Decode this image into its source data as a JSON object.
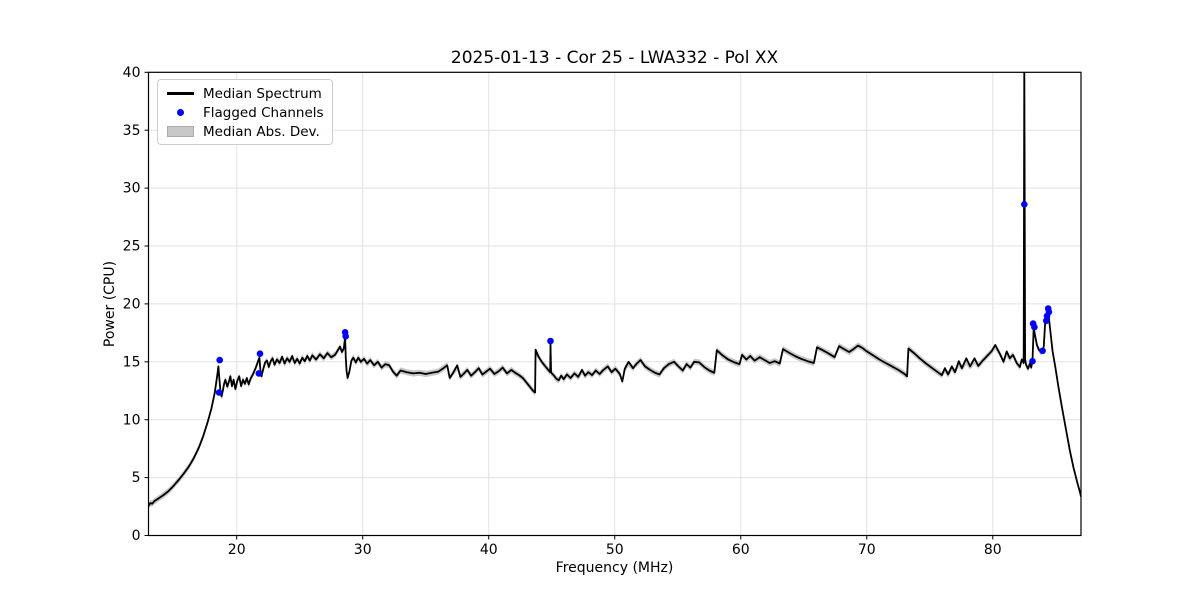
{
  "figure": {
    "background": "#ffffff"
  },
  "colors": {
    "line": "#000000",
    "flagged": "#0000ff",
    "band": "#c8c8c8",
    "grid": "#e2e2e2",
    "spine": "#000000",
    "tick": "#000000",
    "text": "#000000"
  },
  "legend": {
    "items": [
      {
        "label": "Median Spectrum",
        "swatch": "line"
      },
      {
        "label": "Flagged Channels",
        "swatch": "dot"
      },
      {
        "label": "Median Abs. Dev.",
        "swatch": "patch"
      }
    ]
  },
  "chart_data": {
    "type": "line",
    "title": "2025-01-13 - Cor 25 - LWA332 - Pol XX",
    "xlabel": "Frequency (MHz)",
    "ylabel": "Power (CPU)",
    "xlim": [
      13,
      87
    ],
    "ylim": [
      0,
      40
    ],
    "xticks": [
      20,
      30,
      40,
      50,
      60,
      70,
      80
    ],
    "yticks": [
      0,
      5,
      10,
      15,
      20,
      25,
      30,
      35,
      40
    ],
    "grid": true,
    "legend_position": "upper left",
    "series": [
      {
        "name": "Median Spectrum",
        "type": "line",
        "color": "#000000",
        "points": [
          [
            13.0,
            2.55
          ],
          [
            13.15,
            2.8
          ],
          [
            13.3,
            2.75
          ],
          [
            13.45,
            2.95
          ],
          [
            13.8,
            3.2
          ],
          [
            14.2,
            3.5
          ],
          [
            14.6,
            3.85
          ],
          [
            15.0,
            4.3
          ],
          [
            15.4,
            4.8
          ],
          [
            15.8,
            5.35
          ],
          [
            16.2,
            5.95
          ],
          [
            16.6,
            6.7
          ],
          [
            17.0,
            7.6
          ],
          [
            17.35,
            8.6
          ],
          [
            17.7,
            9.8
          ],
          [
            18.0,
            11.0
          ],
          [
            18.25,
            12.3
          ],
          [
            18.45,
            13.8
          ],
          [
            18.55,
            14.6
          ],
          [
            18.62,
            13.6
          ],
          [
            18.7,
            12.6
          ],
          [
            18.8,
            12.0
          ],
          [
            18.9,
            12.5
          ],
          [
            19.0,
            13.1
          ],
          [
            19.1,
            13.45
          ],
          [
            19.25,
            12.85
          ],
          [
            19.4,
            13.35
          ],
          [
            19.5,
            13.75
          ],
          [
            19.62,
            12.9
          ],
          [
            19.75,
            13.45
          ],
          [
            19.9,
            12.65
          ],
          [
            20.05,
            13.35
          ],
          [
            20.2,
            13.75
          ],
          [
            20.35,
            12.9
          ],
          [
            20.5,
            13.45
          ],
          [
            20.65,
            13.1
          ],
          [
            20.8,
            13.6
          ],
          [
            20.95,
            13.05
          ],
          [
            21.1,
            13.55
          ],
          [
            21.3,
            13.95
          ],
          [
            21.5,
            14.45
          ],
          [
            21.7,
            15.05
          ],
          [
            21.8,
            15.35
          ],
          [
            21.88,
            14.3
          ],
          [
            21.97,
            13.75
          ],
          [
            22.1,
            14.35
          ],
          [
            22.25,
            14.95
          ],
          [
            22.4,
            15.1
          ],
          [
            22.55,
            14.55
          ],
          [
            22.7,
            15.05
          ],
          [
            22.85,
            15.3
          ],
          [
            23.0,
            14.75
          ],
          [
            23.2,
            15.2
          ],
          [
            23.4,
            14.9
          ],
          [
            23.6,
            15.45
          ],
          [
            23.8,
            14.85
          ],
          [
            24.0,
            15.3
          ],
          [
            24.2,
            15.0
          ],
          [
            24.4,
            15.5
          ],
          [
            24.6,
            14.9
          ],
          [
            24.8,
            15.25
          ],
          [
            25.0,
            14.85
          ],
          [
            25.2,
            15.35
          ],
          [
            25.4,
            15.05
          ],
          [
            25.6,
            15.5
          ],
          [
            25.8,
            15.1
          ],
          [
            26.0,
            15.55
          ],
          [
            26.3,
            15.2
          ],
          [
            26.6,
            15.65
          ],
          [
            26.9,
            15.3
          ],
          [
            27.2,
            15.75
          ],
          [
            27.5,
            15.4
          ],
          [
            27.8,
            15.6
          ],
          [
            28.0,
            15.95
          ],
          [
            28.2,
            16.3
          ],
          [
            28.35,
            15.85
          ],
          [
            28.5,
            16.15
          ],
          [
            28.6,
            17.1
          ],
          [
            28.66,
            15.3
          ],
          [
            28.72,
            14.2
          ],
          [
            28.8,
            13.6
          ],
          [
            28.95,
            14.2
          ],
          [
            29.1,
            15.1
          ],
          [
            29.25,
            15.35
          ],
          [
            29.45,
            14.95
          ],
          [
            29.65,
            15.35
          ],
          [
            29.85,
            15.0
          ],
          [
            30.1,
            15.25
          ],
          [
            30.35,
            14.85
          ],
          [
            30.6,
            15.15
          ],
          [
            30.9,
            14.7
          ],
          [
            31.2,
            15.0
          ],
          [
            31.5,
            14.5
          ],
          [
            31.8,
            14.8
          ],
          [
            32.1,
            14.7
          ],
          [
            32.4,
            14.15
          ],
          [
            32.7,
            13.8
          ],
          [
            33.0,
            14.25
          ],
          [
            33.5,
            14.1
          ],
          [
            34.0,
            14.0
          ],
          [
            34.5,
            14.05
          ],
          [
            35.0,
            13.95
          ],
          [
            35.5,
            14.05
          ],
          [
            36.0,
            14.15
          ],
          [
            36.4,
            14.45
          ],
          [
            36.7,
            14.7
          ],
          [
            36.9,
            13.6
          ],
          [
            37.2,
            14.1
          ],
          [
            37.5,
            14.7
          ],
          [
            37.75,
            13.7
          ],
          [
            38.0,
            13.95
          ],
          [
            38.3,
            14.3
          ],
          [
            38.6,
            13.8
          ],
          [
            38.9,
            14.1
          ],
          [
            39.2,
            14.45
          ],
          [
            39.5,
            13.9
          ],
          [
            39.8,
            14.15
          ],
          [
            40.1,
            14.4
          ],
          [
            40.45,
            13.95
          ],
          [
            40.8,
            14.2
          ],
          [
            41.1,
            14.5
          ],
          [
            41.45,
            14.0
          ],
          [
            41.8,
            14.3
          ],
          [
            42.1,
            14.05
          ],
          [
            42.4,
            13.85
          ],
          [
            42.7,
            13.6
          ],
          [
            43.0,
            13.2
          ],
          [
            43.3,
            12.8
          ],
          [
            43.55,
            12.45
          ],
          [
            43.68,
            12.35
          ],
          [
            43.72,
            16.05
          ],
          [
            43.95,
            15.45
          ],
          [
            44.2,
            15.0
          ],
          [
            44.5,
            14.6
          ],
          [
            44.8,
            14.2
          ],
          [
            44.88,
            14.1
          ],
          [
            44.9,
            16.5
          ],
          [
            44.95,
            14.05
          ],
          [
            45.15,
            13.85
          ],
          [
            45.35,
            13.55
          ],
          [
            45.55,
            13.4
          ],
          [
            45.75,
            13.8
          ],
          [
            45.95,
            13.5
          ],
          [
            46.2,
            13.9
          ],
          [
            46.5,
            13.6
          ],
          [
            46.8,
            14.0
          ],
          [
            47.1,
            13.7
          ],
          [
            47.4,
            14.3
          ],
          [
            47.65,
            13.8
          ],
          [
            47.9,
            14.1
          ],
          [
            48.2,
            13.85
          ],
          [
            48.5,
            14.25
          ],
          [
            48.8,
            13.95
          ],
          [
            49.1,
            14.3
          ],
          [
            49.45,
            14.6
          ],
          [
            49.75,
            14.1
          ],
          [
            50.05,
            14.4
          ],
          [
            50.4,
            13.95
          ],
          [
            50.6,
            13.3
          ],
          [
            50.8,
            14.4
          ],
          [
            51.1,
            15.0
          ],
          [
            51.45,
            14.45
          ],
          [
            51.75,
            14.85
          ],
          [
            52.05,
            15.15
          ],
          [
            52.4,
            14.6
          ],
          [
            52.8,
            14.3
          ],
          [
            53.2,
            14.05
          ],
          [
            53.55,
            13.9
          ],
          [
            53.9,
            14.45
          ],
          [
            54.3,
            14.8
          ],
          [
            54.7,
            15.0
          ],
          [
            55.05,
            14.6
          ],
          [
            55.4,
            14.25
          ],
          [
            55.7,
            14.8
          ],
          [
            56.0,
            14.5
          ],
          [
            56.3,
            15.0
          ],
          [
            56.7,
            14.95
          ],
          [
            57.1,
            14.55
          ],
          [
            57.5,
            14.25
          ],
          [
            57.9,
            14.05
          ],
          [
            58.1,
            16.0
          ],
          [
            58.5,
            15.6
          ],
          [
            59.0,
            15.2
          ],
          [
            59.5,
            14.95
          ],
          [
            59.9,
            14.8
          ],
          [
            60.1,
            15.6
          ],
          [
            60.45,
            15.2
          ],
          [
            60.75,
            15.5
          ],
          [
            61.1,
            15.1
          ],
          [
            61.5,
            15.4
          ],
          [
            61.9,
            15.15
          ],
          [
            62.3,
            14.9
          ],
          [
            62.7,
            15.05
          ],
          [
            63.1,
            14.85
          ],
          [
            63.35,
            16.1
          ],
          [
            63.8,
            15.8
          ],
          [
            64.3,
            15.5
          ],
          [
            64.8,
            15.25
          ],
          [
            65.3,
            15.05
          ],
          [
            65.8,
            14.9
          ],
          [
            66.05,
            16.25
          ],
          [
            66.5,
            16.0
          ],
          [
            67.0,
            15.7
          ],
          [
            67.45,
            15.4
          ],
          [
            67.8,
            16.35
          ],
          [
            68.2,
            16.1
          ],
          [
            68.6,
            15.85
          ],
          [
            68.95,
            16.1
          ],
          [
            69.3,
            16.4
          ],
          [
            69.65,
            16.2
          ],
          [
            70.0,
            15.9
          ],
          [
            70.5,
            15.55
          ],
          [
            71.0,
            15.2
          ],
          [
            71.5,
            14.9
          ],
          [
            72.0,
            14.6
          ],
          [
            72.5,
            14.3
          ],
          [
            73.0,
            13.95
          ],
          [
            73.2,
            13.75
          ],
          [
            73.3,
            16.15
          ],
          [
            73.75,
            15.75
          ],
          [
            74.2,
            15.3
          ],
          [
            74.7,
            14.85
          ],
          [
            75.2,
            14.45
          ],
          [
            75.7,
            14.05
          ],
          [
            75.95,
            13.85
          ],
          [
            76.2,
            14.45
          ],
          [
            76.45,
            13.9
          ],
          [
            76.75,
            14.6
          ],
          [
            77.0,
            14.1
          ],
          [
            77.3,
            15.05
          ],
          [
            77.55,
            14.45
          ],
          [
            77.9,
            15.3
          ],
          [
            78.2,
            14.6
          ],
          [
            78.55,
            15.3
          ],
          [
            78.85,
            14.65
          ],
          [
            79.2,
            15.1
          ],
          [
            79.55,
            15.5
          ],
          [
            79.9,
            15.9
          ],
          [
            80.2,
            16.45
          ],
          [
            80.6,
            15.6
          ],
          [
            80.85,
            15.0
          ],
          [
            81.1,
            15.9
          ],
          [
            81.35,
            15.3
          ],
          [
            81.6,
            15.6
          ],
          [
            81.9,
            14.9
          ],
          [
            82.15,
            14.55
          ],
          [
            82.3,
            15.2
          ],
          [
            82.45,
            14.9
          ],
          [
            82.5,
            41.5
          ],
          [
            82.56,
            15.2
          ],
          [
            82.65,
            14.7
          ],
          [
            82.8,
            14.4
          ],
          [
            82.95,
            14.9
          ],
          [
            83.05,
            14.5
          ],
          [
            83.15,
            15.1
          ],
          [
            83.25,
            17.95
          ],
          [
            83.35,
            17.3
          ],
          [
            83.5,
            16.45
          ],
          [
            83.65,
            16.05
          ],
          [
            83.8,
            15.85
          ],
          [
            83.95,
            15.95
          ],
          [
            84.05,
            16.35
          ],
          [
            84.15,
            18.3
          ],
          [
            84.3,
            18.5
          ],
          [
            84.45,
            18.8
          ],
          [
            84.6,
            17.3
          ],
          [
            84.75,
            15.9
          ],
          [
            84.95,
            14.6
          ],
          [
            85.2,
            12.9
          ],
          [
            85.5,
            11.0
          ],
          [
            85.8,
            9.2
          ],
          [
            86.1,
            7.4
          ],
          [
            86.4,
            5.9
          ],
          [
            86.7,
            4.6
          ],
          [
            86.95,
            3.6
          ],
          [
            87.0,
            3.35
          ]
        ]
      },
      {
        "name": "Flagged Channels",
        "type": "scatter",
        "color": "#0000ff",
        "points": [
          [
            18.6,
            12.35
          ],
          [
            18.65,
            15.15
          ],
          [
            21.75,
            14.0
          ],
          [
            21.85,
            15.7
          ],
          [
            28.6,
            17.55
          ],
          [
            28.65,
            17.2
          ],
          [
            44.9,
            16.8
          ],
          [
            82.5,
            28.6
          ],
          [
            83.15,
            15.05
          ],
          [
            83.2,
            18.3
          ],
          [
            83.3,
            18.0
          ],
          [
            83.95,
            15.95
          ],
          [
            84.25,
            18.55
          ],
          [
            84.3,
            18.95
          ],
          [
            84.4,
            19.6
          ],
          [
            84.45,
            19.3
          ]
        ]
      },
      {
        "name": "Median Abs. Dev.",
        "type": "band",
        "color": "#c8c8c8",
        "half_width": 0.27,
        "derived_from": "Median Spectrum"
      }
    ]
  }
}
